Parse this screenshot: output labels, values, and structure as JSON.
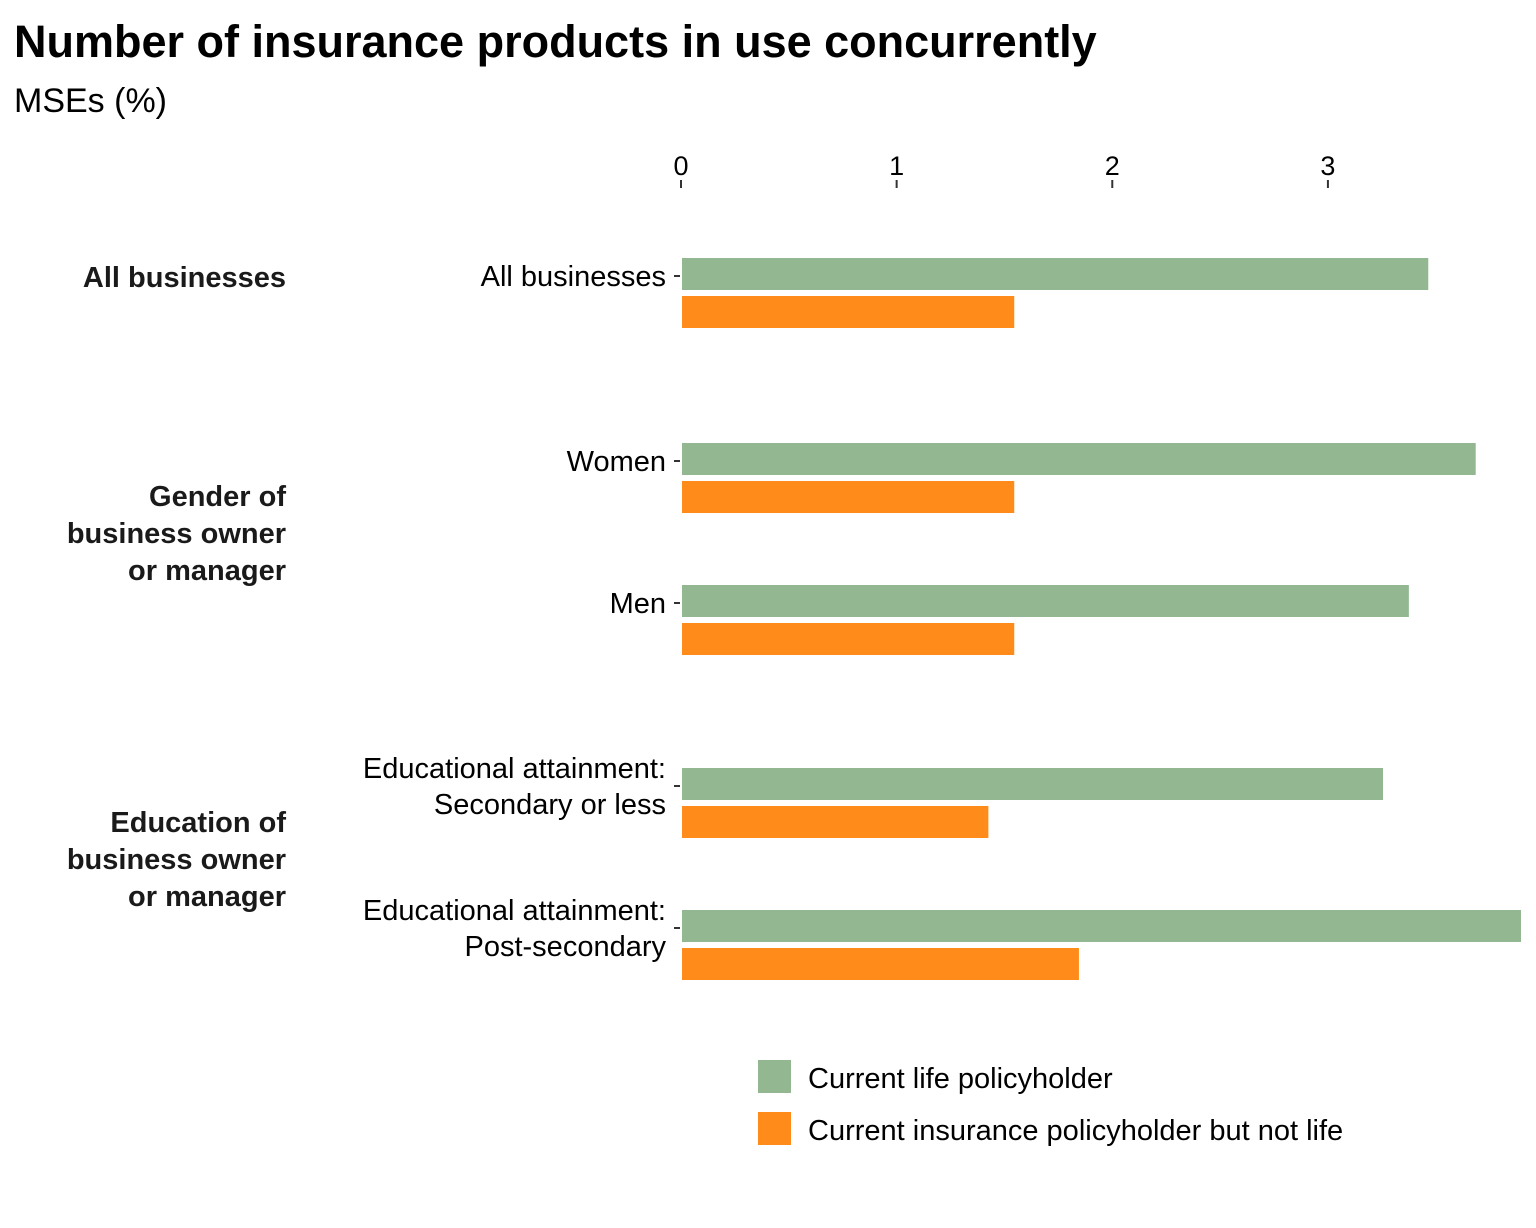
{
  "title": "Number of insurance products in use concurrently",
  "subtitle": "MSEs (%)",
  "colors": {
    "life": "#93b891",
    "not_life": "#ff8c1a",
    "text": "#000000",
    "group_text": "#1a1a1a"
  },
  "chart_data": {
    "type": "bar",
    "orientation": "horizontal",
    "title": "Number of insurance products in use concurrently",
    "subtitle": "MSEs (%)",
    "xlim": [
      0,
      3.9
    ],
    "x_ticks": [
      "0",
      "1",
      "2",
      "3"
    ],
    "x_axis_position": "top",
    "grid": false,
    "legend_position": "bottom",
    "groups": [
      {
        "label": "All businesses",
        "categories": [
          "All businesses"
        ]
      },
      {
        "label": "Gender of business owner or manager",
        "label_lines": [
          "Gender of",
          "business owner",
          "or manager"
        ],
        "categories": [
          "Women",
          "Men"
        ]
      },
      {
        "label": "Education of business owner or manager",
        "label_lines": [
          "Education of",
          "business owner",
          "or manager"
        ],
        "categories": [
          "Educational attainment: Secondary or less",
          "Educational attainment: Post-secondary"
        ]
      }
    ],
    "categories": [
      "All businesses",
      "Women",
      "Men",
      "Educational attainment: Secondary or less",
      "Educational attainment: Post-secondary"
    ],
    "category_label_lines": [
      [
        "All businesses"
      ],
      [
        "Women"
      ],
      [
        "Men"
      ],
      [
        "Educational attainment:",
        "Secondary or less"
      ],
      [
        "Educational attainment:",
        "Post-secondary"
      ]
    ],
    "series": [
      {
        "name": "Current life policyholder",
        "color": "#93b891",
        "values": [
          3.47,
          3.69,
          3.38,
          3.26,
          3.9
        ]
      },
      {
        "name": "Current insurance policyholder but not life",
        "color": "#ff8c1a",
        "values": [
          1.55,
          1.55,
          1.55,
          1.43,
          1.85
        ]
      }
    ]
  }
}
